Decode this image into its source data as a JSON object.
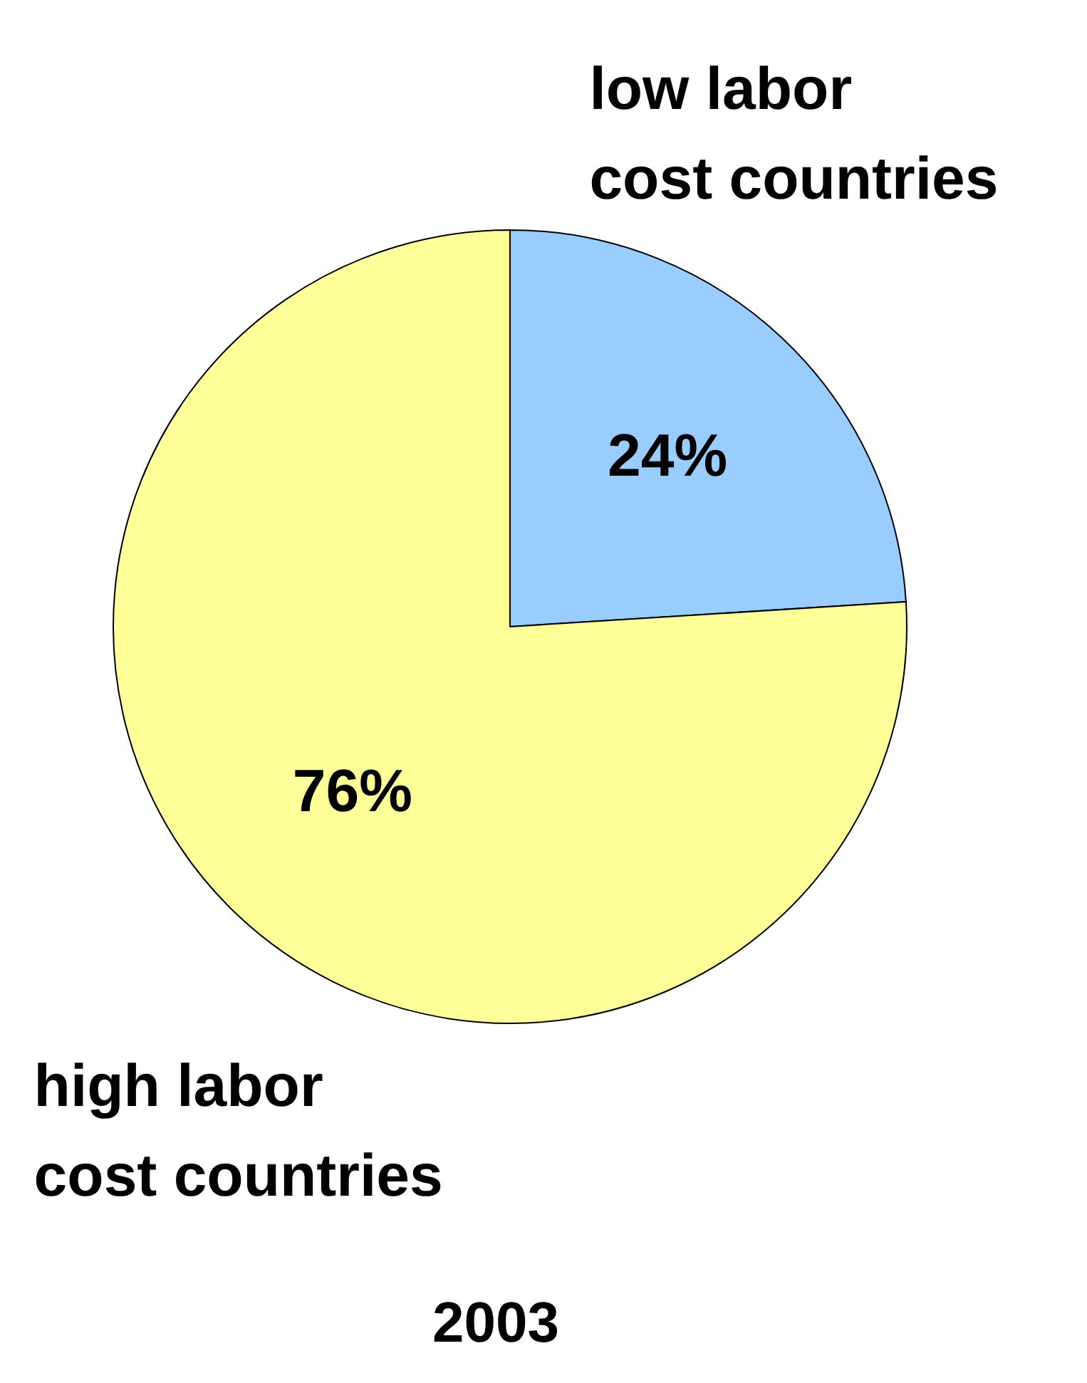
{
  "chart_data": {
    "type": "pie",
    "title": "2003",
    "categories": [
      "low labor cost countries",
      "high labor cost countries"
    ],
    "values": [
      24,
      76
    ],
    "colors": [
      "#99ccff",
      "#ffff99"
    ],
    "value_labels": [
      "24%",
      "76%"
    ],
    "legend": false
  }
}
